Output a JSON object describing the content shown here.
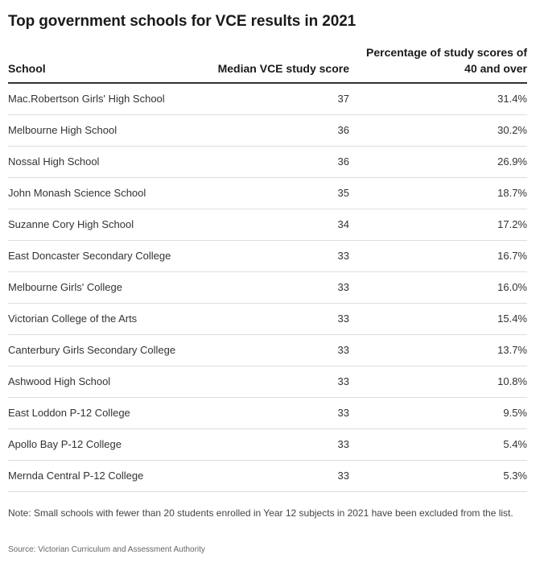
{
  "title": "Top government schools for VCE results in 2021",
  "columns": {
    "school": "School",
    "median": "Median VCE study score",
    "pct": "Percentage of study scores of 40 and over"
  },
  "chart_data": {
    "type": "table",
    "title": "Top government schools for VCE results in 2021",
    "columns": [
      "School",
      "Median VCE study score",
      "Percentage of study scores of 40 and over"
    ],
    "rows": [
      {
        "school": "Mac.Robertson Girls' High School",
        "median": "37",
        "pct": "31.4%"
      },
      {
        "school": "Melbourne High School",
        "median": "36",
        "pct": "30.2%"
      },
      {
        "school": "Nossal High School",
        "median": "36",
        "pct": "26.9%"
      },
      {
        "school": "John Monash Science School",
        "median": "35",
        "pct": "18.7%"
      },
      {
        "school": "Suzanne Cory High School",
        "median": "34",
        "pct": "17.2%"
      },
      {
        "school": "East Doncaster Secondary College",
        "median": "33",
        "pct": "16.7%"
      },
      {
        "school": "Melbourne Girls' College",
        "median": "33",
        "pct": "16.0%"
      },
      {
        "school": "Victorian College of the Arts",
        "median": "33",
        "pct": "15.4%"
      },
      {
        "school": "Canterbury Girls Secondary College",
        "median": "33",
        "pct": "13.7%"
      },
      {
        "school": "Ashwood High School",
        "median": "33",
        "pct": "10.8%"
      },
      {
        "school": "East Loddon P-12 College",
        "median": "33",
        "pct": "9.5%"
      },
      {
        "school": "Apollo Bay P-12 College",
        "median": "33",
        "pct": "5.4%"
      },
      {
        "school": "Mernda Central P-12 College",
        "median": "33",
        "pct": "5.3%"
      }
    ]
  },
  "note": "Note: Small schools with fewer than 20 students enrolled in Year 12 subjects in 2021 have been excluded from the list.",
  "source": "Source: Victorian Curriculum and Assessment Authority"
}
